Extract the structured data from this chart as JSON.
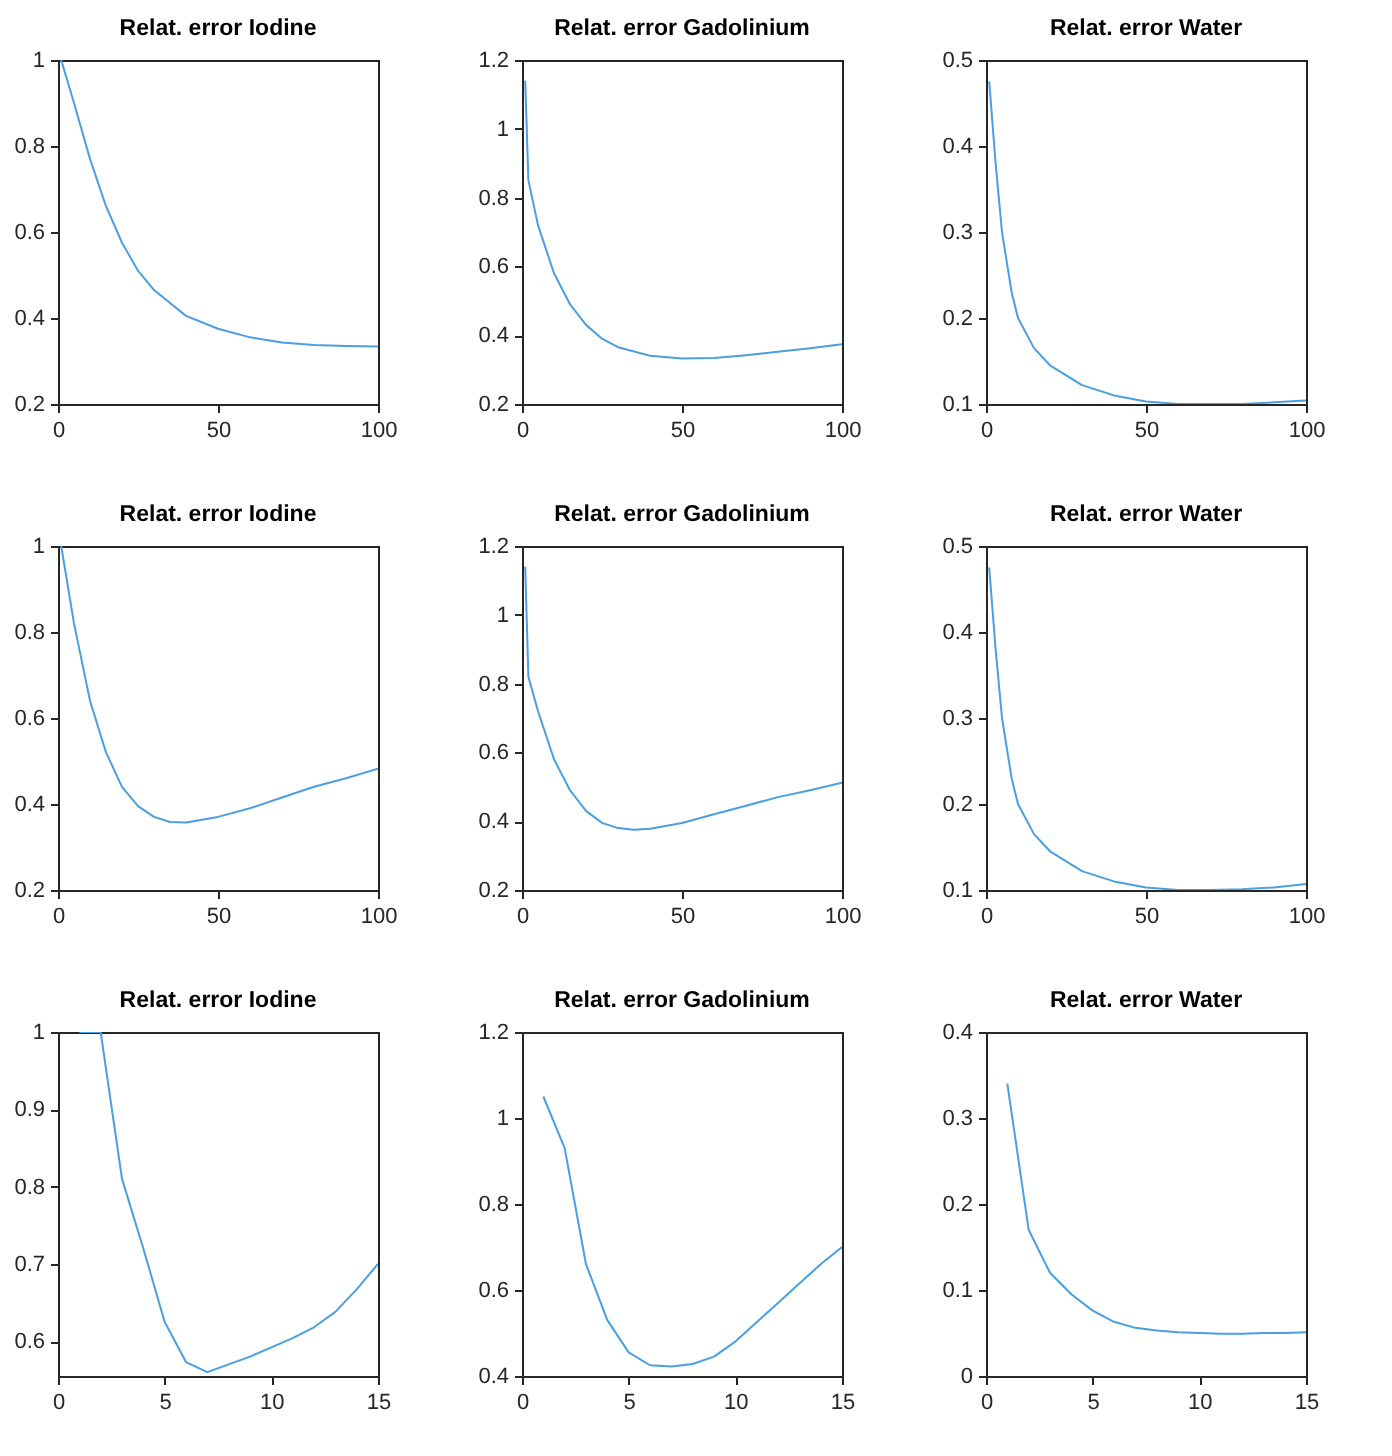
{
  "chart_data": [
    {
      "type": "line",
      "title": "Relat. error Iodine",
      "grid": false,
      "xlim": [
        0,
        100
      ],
      "xticks": [
        0,
        50,
        100
      ],
      "ylim": [
        0.2,
        1
      ],
      "yticks": [
        0.2,
        0.4,
        0.6,
        0.8,
        1
      ],
      "series": [
        {
          "color": "#4a9fe0",
          "x": [
            1,
            5,
            10,
            15,
            20,
            25,
            30,
            40,
            50,
            60,
            70,
            80,
            90,
            100
          ],
          "values": [
            1.0,
            0.9,
            0.77,
            0.66,
            0.575,
            0.51,
            0.465,
            0.405,
            0.375,
            0.355,
            0.343,
            0.337,
            0.335,
            0.334
          ]
        }
      ]
    },
    {
      "type": "line",
      "title": "Relat. error Gadolinium",
      "grid": false,
      "xlim": [
        0,
        100
      ],
      "xticks": [
        0,
        50,
        100
      ],
      "ylim": [
        0.2,
        1.2
      ],
      "yticks": [
        0.2,
        0.4,
        0.6,
        0.8,
        1,
        1.2
      ],
      "series": [
        {
          "color": "#4a9fe0",
          "x": [
            1,
            2,
            5,
            10,
            15,
            20,
            25,
            30,
            40,
            50,
            60,
            70,
            80,
            90,
            100
          ],
          "values": [
            1.14,
            0.85,
            0.72,
            0.58,
            0.49,
            0.43,
            0.39,
            0.365,
            0.34,
            0.332,
            0.334,
            0.342,
            0.352,
            0.362,
            0.374
          ]
        }
      ]
    },
    {
      "type": "line",
      "title": "Relat. error Water",
      "grid": false,
      "xlim": [
        0,
        100
      ],
      "xticks": [
        0,
        50,
        100
      ],
      "ylim": [
        0.1,
        0.5
      ],
      "yticks": [
        0.1,
        0.2,
        0.3,
        0.4,
        0.5
      ],
      "series": [
        {
          "color": "#4a9fe0",
          "x": [
            1,
            3,
            5,
            8,
            10,
            15,
            20,
            30,
            40,
            50,
            60,
            70,
            80,
            90,
            100
          ],
          "values": [
            0.475,
            0.38,
            0.3,
            0.23,
            0.2,
            0.165,
            0.145,
            0.122,
            0.11,
            0.103,
            0.1,
            0.1,
            0.1,
            0.102,
            0.104
          ]
        }
      ]
    },
    {
      "type": "line",
      "title": "Relat. error Iodine",
      "grid": false,
      "xlim": [
        0,
        100
      ],
      "xticks": [
        0,
        50,
        100
      ],
      "ylim": [
        0.2,
        1
      ],
      "yticks": [
        0.2,
        0.4,
        0.6,
        0.8,
        1
      ],
      "series": [
        {
          "color": "#4a9fe0",
          "x": [
            1,
            5,
            10,
            15,
            20,
            25,
            30,
            35,
            40,
            50,
            60,
            70,
            80,
            90,
            100
          ],
          "values": [
            1.0,
            0.82,
            0.64,
            0.52,
            0.44,
            0.395,
            0.37,
            0.358,
            0.357,
            0.37,
            0.39,
            0.415,
            0.44,
            0.46,
            0.482
          ]
        }
      ]
    },
    {
      "type": "line",
      "title": "Relat. error Gadolinium",
      "grid": false,
      "xlim": [
        0,
        100
      ],
      "xticks": [
        0,
        50,
        100
      ],
      "ylim": [
        0.2,
        1.2
      ],
      "yticks": [
        0.2,
        0.4,
        0.6,
        0.8,
        1,
        1.2
      ],
      "series": [
        {
          "color": "#4a9fe0",
          "x": [
            1,
            2,
            5,
            10,
            15,
            20,
            25,
            30,
            35,
            40,
            50,
            60,
            70,
            80,
            90,
            100
          ],
          "values": [
            1.14,
            0.82,
            0.72,
            0.58,
            0.49,
            0.43,
            0.395,
            0.38,
            0.375,
            0.378,
            0.395,
            0.42,
            0.445,
            0.47,
            0.49,
            0.512
          ]
        }
      ]
    },
    {
      "type": "line",
      "title": "Relat. error Water",
      "grid": false,
      "xlim": [
        0,
        100
      ],
      "xticks": [
        0,
        50,
        100
      ],
      "ylim": [
        0.1,
        0.5
      ],
      "yticks": [
        0.1,
        0.2,
        0.3,
        0.4,
        0.5
      ],
      "series": [
        {
          "color": "#4a9fe0",
          "x": [
            1,
            3,
            5,
            8,
            10,
            15,
            20,
            30,
            40,
            50,
            60,
            70,
            80,
            90,
            100
          ],
          "values": [
            0.475,
            0.38,
            0.3,
            0.23,
            0.2,
            0.165,
            0.145,
            0.122,
            0.11,
            0.103,
            0.1,
            0.1,
            0.101,
            0.103,
            0.107
          ]
        }
      ]
    },
    {
      "type": "line",
      "title": "Relat. error Iodine",
      "grid": false,
      "xlim": [
        0,
        15
      ],
      "xticks": [
        0,
        5,
        10,
        15
      ],
      "ylim": [
        0.555,
        1
      ],
      "yticks": [
        0.6,
        0.7,
        0.8,
        0.9,
        1
      ],
      "series": [
        {
          "color": "#4a9fe0",
          "x": [
            1,
            2,
            3,
            4,
            5,
            6,
            7,
            8,
            9,
            10,
            11,
            12,
            13,
            14,
            15
          ],
          "values": [
            1.0,
            1.0,
            0.81,
            0.72,
            0.625,
            0.573,
            0.56,
            0.57,
            0.58,
            0.592,
            0.604,
            0.618,
            0.638,
            0.667,
            0.7
          ]
        }
      ]
    },
    {
      "type": "line",
      "title": "Relat. error Gadolinium",
      "grid": false,
      "xlim": [
        0,
        15
      ],
      "xticks": [
        0,
        5,
        10,
        15
      ],
      "ylim": [
        0.4,
        1.2
      ],
      "yticks": [
        0.4,
        0.6,
        0.8,
        1,
        1.2
      ],
      "series": [
        {
          "color": "#4a9fe0",
          "x": [
            1,
            2,
            3,
            4,
            5,
            6,
            7,
            8,
            9,
            10,
            11,
            12,
            13,
            14,
            15
          ],
          "values": [
            1.05,
            0.93,
            0.66,
            0.53,
            0.455,
            0.425,
            0.422,
            0.428,
            0.445,
            0.48,
            0.525,
            0.57,
            0.615,
            0.66,
            0.7
          ]
        }
      ]
    },
    {
      "type": "line",
      "title": "Relat. error Water",
      "grid": false,
      "xlim": [
        0,
        15
      ],
      "xticks": [
        0,
        5,
        10,
        15
      ],
      "ylim": [
        0,
        0.4
      ],
      "yticks": [
        0,
        0.1,
        0.2,
        0.3,
        0.4
      ],
      "series": [
        {
          "color": "#4a9fe0",
          "x": [
            1,
            2,
            3,
            4,
            5,
            6,
            7,
            8,
            9,
            10,
            11,
            12,
            13,
            14,
            15
          ],
          "values": [
            0.34,
            0.17,
            0.12,
            0.095,
            0.076,
            0.063,
            0.056,
            0.053,
            0.051,
            0.05,
            0.049,
            0.049,
            0.05,
            0.05,
            0.051
          ]
        }
      ]
    }
  ]
}
